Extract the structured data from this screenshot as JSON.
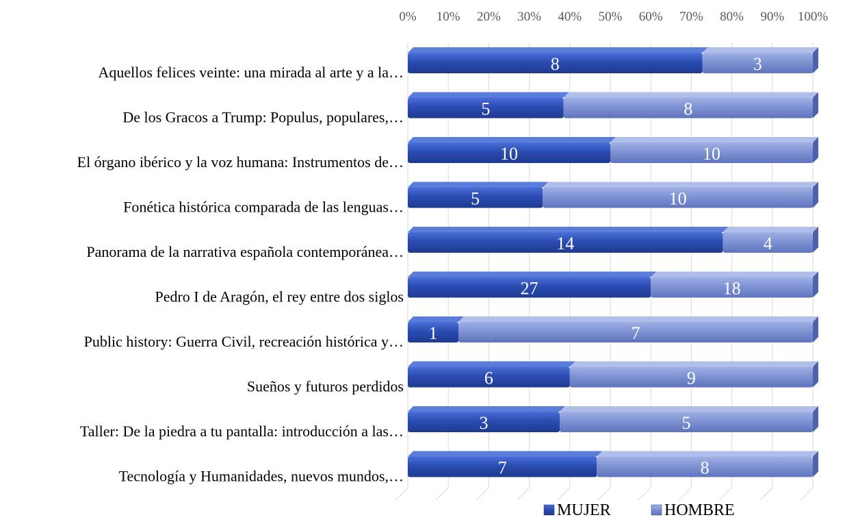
{
  "chart_data": {
    "type": "bar",
    "orientation": "horizontal",
    "stacking": "percent",
    "categories": [
      "Aquellos felices veinte: una mirada al arte y a la…",
      "De los Gracos a Trump: Populus, populares,…",
      "El órgano ibérico y la voz humana: Instrumentos de…",
      "Fonética histórica comparada de las lenguas…",
      "Panorama de la narrativa española contemporánea…",
      "Pedro I de Aragón, el rey entre dos siglos",
      "Public history: Guerra Civil, recreación histórica y…",
      "Sueños y futuros perdidos",
      "Taller: De la piedra a tu pantalla: introducción a las…",
      "Tecnología y Humanidades, nuevos mundos,…"
    ],
    "series": [
      {
        "name": "MUJER",
        "color": "#2e4fb8",
        "values": [
          8,
          5,
          10,
          5,
          14,
          27,
          1,
          6,
          3,
          7
        ]
      },
      {
        "name": "HOMBRE",
        "color": "#8497d6",
        "values": [
          3,
          8,
          10,
          10,
          4,
          18,
          7,
          9,
          5,
          8
        ]
      }
    ],
    "xaxis": {
      "ticks": [
        "0%",
        "10%",
        "20%",
        "30%",
        "40%",
        "50%",
        "60%",
        "70%",
        "80%",
        "90%",
        "100%"
      ],
      "position": "top",
      "xlim": [
        0,
        100
      ]
    },
    "grid": true,
    "legend_position": "bottom",
    "style": "3d"
  }
}
